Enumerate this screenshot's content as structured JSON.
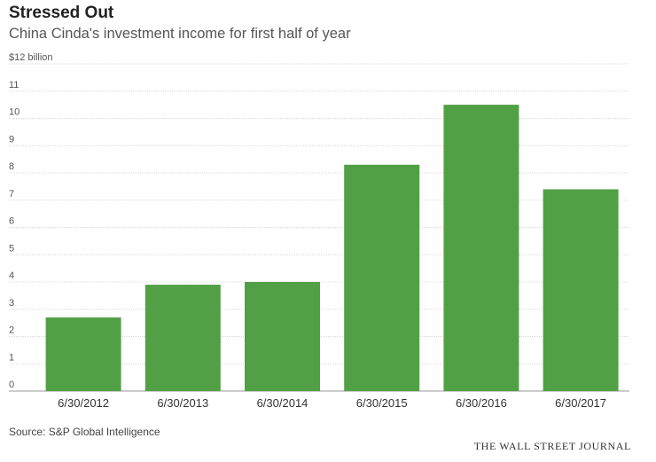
{
  "chart_data": {
    "type": "bar",
    "title": "Stressed Out",
    "subtitle": "China Cinda's investment income for first half of year",
    "unit_label": "$12 billion",
    "categories": [
      "6/30/2012",
      "6/30/2013",
      "6/30/2014",
      "6/30/2015",
      "6/30/2016",
      "6/30/2017"
    ],
    "values": [
      2.7,
      3.9,
      4.0,
      8.3,
      10.5,
      7.4
    ],
    "ylim": [
      0,
      12
    ],
    "yticks": [
      "0",
      "1",
      "2",
      "3",
      "4",
      "5",
      "6",
      "7",
      "8",
      "9",
      "10",
      "11",
      "$12 billion"
    ],
    "xlabel": "",
    "ylabel": "",
    "grid": true,
    "bar_color": "#52a046",
    "grid_color": "#d9d9d9",
    "source": "Source: S&P Global Intelligence",
    "publisher": "THE WALL STREET JOURNAL"
  }
}
